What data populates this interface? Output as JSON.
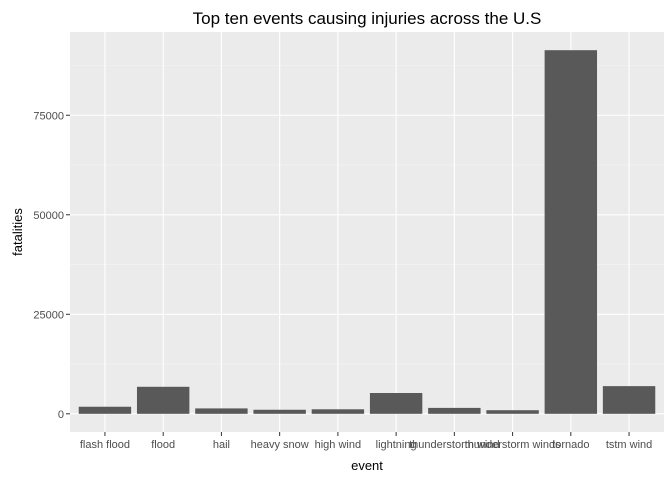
{
  "chart_data": {
    "type": "bar",
    "title": "Top ten events causing injuries across the U.S",
    "xlabel": "event",
    "ylabel": "fatalities",
    "categories": [
      "flash flood",
      "flood",
      "hail",
      "heavy snow",
      "high wind",
      "lightning",
      "thunderstorm wind",
      "thunderstorm winds",
      "tornado",
      "tstm wind"
    ],
    "values": [
      1777,
      6789,
      1361,
      1021,
      1137,
      5230,
      1488,
      908,
      91346,
      6957
    ],
    "yticks": [
      0,
      25000,
      50000,
      75000
    ],
    "ylim": [
      -4567,
      95913
    ],
    "grid": true,
    "legend": "none",
    "colors": {
      "bar": "#595959",
      "panel": "#ebebeb",
      "grid_major": "#ffffff",
      "grid_minor": "#f5f5f5"
    }
  }
}
